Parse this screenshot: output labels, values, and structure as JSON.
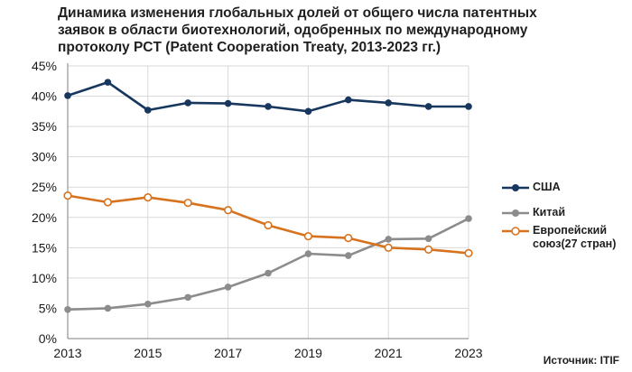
{
  "chart_data": {
    "type": "line",
    "title": "Динамика изменения глобальных долей от общего числа патентных заявок в области биотехнологий, одобренных по международному протоколу PCT (Patent Cooperation Treaty, 2013-2023 гг.)",
    "x": [
      2013,
      2014,
      2015,
      2016,
      2017,
      2018,
      2019,
      2020,
      2021,
      2022,
      2023
    ],
    "x_ticks": [
      "2013",
      "2015",
      "2017",
      "2019",
      "2021",
      "2023"
    ],
    "y_ticks": [
      "0%",
      "5%",
      "10%",
      "15%",
      "20%",
      "25%",
      "30%",
      "35%",
      "40%",
      "45%"
    ],
    "ylim": [
      0,
      45
    ],
    "xlim": [
      2013,
      2023
    ],
    "grid": true,
    "legend_position": "right",
    "series": [
      {
        "name": "США",
        "color": "#17375e",
        "marker": "filled",
        "values": [
          40.1,
          42.3,
          37.7,
          38.9,
          38.8,
          38.3,
          37.5,
          39.4,
          38.9,
          38.3,
          38.3
        ]
      },
      {
        "name": "Китай",
        "color": "#8c8c8c",
        "marker": "filled",
        "values": [
          4.8,
          5.0,
          5.7,
          6.8,
          8.5,
          10.8,
          14.0,
          13.7,
          16.4,
          16.5,
          19.8
        ]
      },
      {
        "name": "Европейский союз(27 стран)",
        "color": "#d7731e",
        "marker": "hollow",
        "values": [
          23.6,
          22.5,
          23.3,
          22.4,
          21.2,
          18.7,
          16.9,
          16.6,
          15.0,
          14.7,
          14.1
        ]
      }
    ]
  },
  "legend": {
    "items": [
      "США",
      "Китай",
      "Европейский\nсоюз(27 стран)"
    ]
  },
  "source_label": "Источник: ITIF"
}
